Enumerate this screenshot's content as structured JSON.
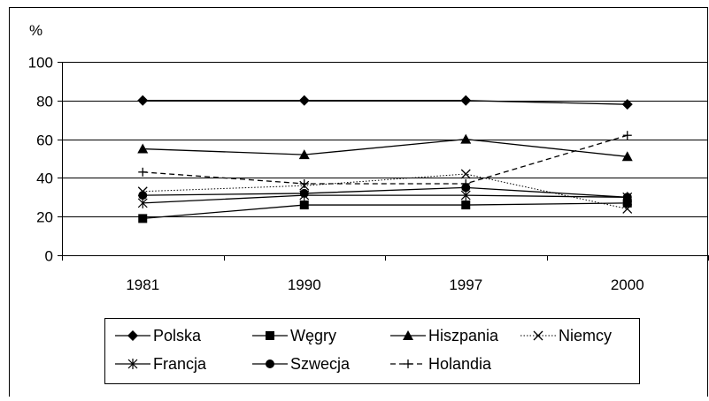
{
  "chart_data": {
    "type": "line",
    "ylabel": "%",
    "categories": [
      "1981",
      "1990",
      "1997",
      "2000"
    ],
    "ylim": [
      0,
      100
    ],
    "yticks": [
      0,
      20,
      40,
      60,
      80,
      100
    ],
    "grid": "horizontal",
    "legend_position": "bottom",
    "series": [
      {
        "name": "Polska",
        "values": [
          80,
          80,
          80,
          78
        ],
        "marker": "diamond",
        "dash": "solid",
        "color": "#000000"
      },
      {
        "name": "Węgry",
        "values": [
          19,
          26,
          26,
          27
        ],
        "marker": "square",
        "dash": "solid",
        "color": "#000000"
      },
      {
        "name": "Hiszpania",
        "values": [
          55,
          52,
          60,
          51
        ],
        "marker": "triangle",
        "dash": "solid",
        "color": "#000000"
      },
      {
        "name": "Niemcy",
        "values": [
          33,
          36,
          42,
          24
        ],
        "marker": "x",
        "dash": "dotted",
        "color": "#000000"
      },
      {
        "name": "Francja",
        "values": [
          27,
          31,
          31,
          30
        ],
        "marker": "asterisk",
        "dash": "solid",
        "color": "#000000"
      },
      {
        "name": "Szwecja",
        "values": [
          31,
          32,
          35,
          30
        ],
        "marker": "circle",
        "dash": "solid",
        "color": "#000000"
      },
      {
        "name": "Holandia",
        "values": [
          43,
          37,
          37,
          62
        ],
        "marker": "plus",
        "dash": "dashed",
        "color": "#000000"
      }
    ]
  }
}
